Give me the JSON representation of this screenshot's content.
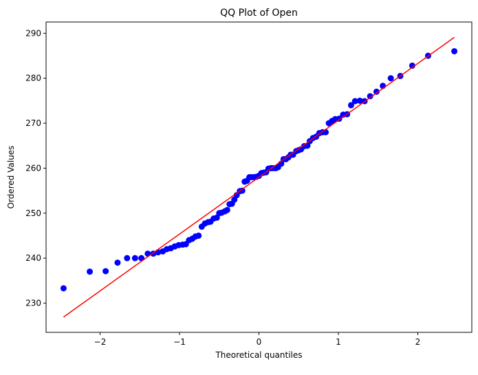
{
  "chart_data": {
    "type": "scatter",
    "title": "QQ Plot of Open",
    "xlabel": "Theoretical quantiles",
    "ylabel": "Ordered Values",
    "xlim": [
      -2.68,
      2.68
    ],
    "ylim": [
      223.5,
      292.5
    ],
    "xticks": [
      -2,
      -1,
      0,
      1,
      2
    ],
    "xtick_labels": [
      "−2",
      "−1",
      "0",
      "1",
      "2"
    ],
    "yticks": [
      230,
      240,
      250,
      260,
      270,
      280,
      290
    ],
    "ytick_labels": [
      "230",
      "240",
      "250",
      "260",
      "270",
      "280",
      "290"
    ],
    "grid": false,
    "series": [
      {
        "marker_color": "#0000ff",
        "points": [
          [
            -2.46,
            233.3
          ],
          [
            -2.13,
            237.0
          ],
          [
            -1.93,
            237.1
          ],
          [
            -1.78,
            239.0
          ],
          [
            -1.66,
            240.0
          ],
          [
            -1.56,
            240.0
          ],
          [
            -1.48,
            240.0
          ],
          [
            -1.4,
            241.0
          ],
          [
            -1.33,
            241.0
          ],
          [
            -1.27,
            241.3
          ],
          [
            -1.21,
            241.5
          ],
          [
            -1.16,
            242.0
          ],
          [
            -1.11,
            242.2
          ],
          [
            -1.06,
            242.6
          ],
          [
            -1.01,
            242.9
          ],
          [
            -0.96,
            243.0
          ],
          [
            -0.92,
            243.1
          ],
          [
            -0.88,
            244.0
          ],
          [
            -0.84,
            244.3
          ],
          [
            -0.8,
            244.8
          ],
          [
            -0.76,
            245.0
          ],
          [
            -0.72,
            247.0
          ],
          [
            -0.68,
            247.7
          ],
          [
            -0.64,
            248.0
          ],
          [
            -0.61,
            248.1
          ],
          [
            -0.57,
            248.8
          ],
          [
            -0.53,
            249.0
          ],
          [
            -0.5,
            250.0
          ],
          [
            -0.47,
            250.1
          ],
          [
            -0.43,
            250.4
          ],
          [
            -0.4,
            250.7
          ],
          [
            -0.37,
            252.0
          ],
          [
            -0.34,
            252.1
          ],
          [
            -0.31,
            253.0
          ],
          [
            -0.28,
            254.0
          ],
          [
            -0.24,
            254.9
          ],
          [
            -0.21,
            255.0
          ],
          [
            -0.18,
            257.0
          ],
          [
            -0.15,
            257.2
          ],
          [
            -0.12,
            258.0
          ],
          [
            -0.09,
            258.0
          ],
          [
            -0.06,
            258.0
          ],
          [
            -0.03,
            258.1
          ],
          [
            0.0,
            258.3
          ],
          [
            0.03,
            258.9
          ],
          [
            0.06,
            259.0
          ],
          [
            0.09,
            259.1
          ],
          [
            0.12,
            259.9
          ],
          [
            0.15,
            260.0
          ],
          [
            0.18,
            260.0
          ],
          [
            0.21,
            260.0
          ],
          [
            0.24,
            260.2
          ],
          [
            0.28,
            261.0
          ],
          [
            0.31,
            262.0
          ],
          [
            0.34,
            262.0
          ],
          [
            0.37,
            262.4
          ],
          [
            0.4,
            263.0
          ],
          [
            0.43,
            263.0
          ],
          [
            0.47,
            263.8
          ],
          [
            0.5,
            264.0
          ],
          [
            0.53,
            264.2
          ],
          [
            0.57,
            264.9
          ],
          [
            0.61,
            265.0
          ],
          [
            0.64,
            266.0
          ],
          [
            0.68,
            266.7
          ],
          [
            0.72,
            267.0
          ],
          [
            0.76,
            267.8
          ],
          [
            0.8,
            268.0
          ],
          [
            0.84,
            268.0
          ],
          [
            0.88,
            270.0
          ],
          [
            0.92,
            270.5
          ],
          [
            0.96,
            270.9
          ],
          [
            1.01,
            271.0
          ],
          [
            1.06,
            271.9
          ],
          [
            1.11,
            272.0
          ],
          [
            1.16,
            274.0
          ],
          [
            1.21,
            274.9
          ],
          [
            1.27,
            275.0
          ],
          [
            1.33,
            274.9
          ],
          [
            1.4,
            276.0
          ],
          [
            1.48,
            277.0
          ],
          [
            1.56,
            278.3
          ],
          [
            1.66,
            280.0
          ],
          [
            1.78,
            280.5
          ],
          [
            1.93,
            282.8
          ],
          [
            2.13,
            285.0
          ],
          [
            2.46,
            286.0
          ]
        ]
      }
    ],
    "fit_line": {
      "color": "#ff0000",
      "x": [
        -2.46,
        2.46
      ],
      "y": [
        226.9,
        289.1
      ]
    }
  }
}
